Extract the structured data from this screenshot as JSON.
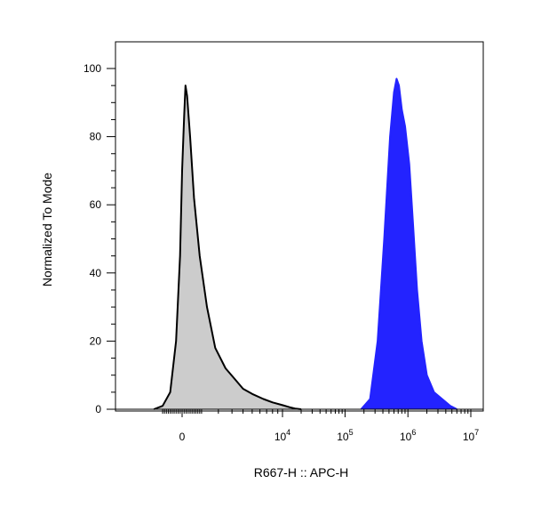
{
  "chart_data": {
    "type": "area",
    "xlabel": "R667-H :: APC-H",
    "ylabel": "Normalized To Mode",
    "ylim": [
      0,
      100
    ],
    "x_scale": "biexponential",
    "grid": false,
    "y_ticks": [
      {
        "value": 0,
        "label": "0"
      },
      {
        "value": 20,
        "label": "20"
      },
      {
        "value": 40,
        "label": "40"
      },
      {
        "value": 60,
        "label": "60"
      },
      {
        "value": 80,
        "label": "80"
      },
      {
        "value": 100,
        "label": "100"
      }
    ],
    "x_ticks": [
      {
        "value": 0,
        "base": "0",
        "exp": ""
      },
      {
        "value": 10000,
        "base": "10",
        "exp": "4"
      },
      {
        "value": 100000,
        "base": "10",
        "exp": "5"
      },
      {
        "value": 1000000,
        "base": "10",
        "exp": "6"
      },
      {
        "value": 10000000,
        "base": "10",
        "exp": "7"
      }
    ],
    "series": [
      {
        "color_fill": "#cccccc",
        "color_line": "#000000",
        "points": [
          [
            -1500,
            0
          ],
          [
            -1000,
            1
          ],
          [
            -600,
            5
          ],
          [
            -300,
            20
          ],
          [
            -100,
            45
          ],
          [
            0,
            70
          ],
          [
            100,
            86
          ],
          [
            170,
            95
          ],
          [
            250,
            92
          ],
          [
            400,
            80
          ],
          [
            600,
            62
          ],
          [
            900,
            45
          ],
          [
            1300,
            30
          ],
          [
            1800,
            18
          ],
          [
            2500,
            12
          ],
          [
            3200,
            9
          ],
          [
            4000,
            6
          ],
          [
            5000,
            4.5
          ],
          [
            6500,
            3
          ],
          [
            8000,
            2
          ],
          [
            10000,
            1.2
          ],
          [
            13000,
            0.6
          ],
          [
            16000,
            0.2
          ],
          [
            20000,
            0
          ]
        ]
      },
      {
        "color_fill": "#2323ff",
        "color_line": "#2323ff",
        "points": [
          [
            180000,
            0
          ],
          [
            250000,
            3
          ],
          [
            330000,
            20
          ],
          [
            420000,
            50
          ],
          [
            520000,
            80
          ],
          [
            600000,
            93
          ],
          [
            660000,
            97
          ],
          [
            720000,
            95
          ],
          [
            800000,
            88
          ],
          [
            900000,
            83
          ],
          [
            1050000,
            72
          ],
          [
            1200000,
            55
          ],
          [
            1400000,
            35
          ],
          [
            1650000,
            20
          ],
          [
            2000000,
            10
          ],
          [
            2600000,
            5
          ],
          [
            3500000,
            3
          ],
          [
            4700000,
            1
          ],
          [
            6000000,
            0
          ]
        ]
      }
    ]
  }
}
